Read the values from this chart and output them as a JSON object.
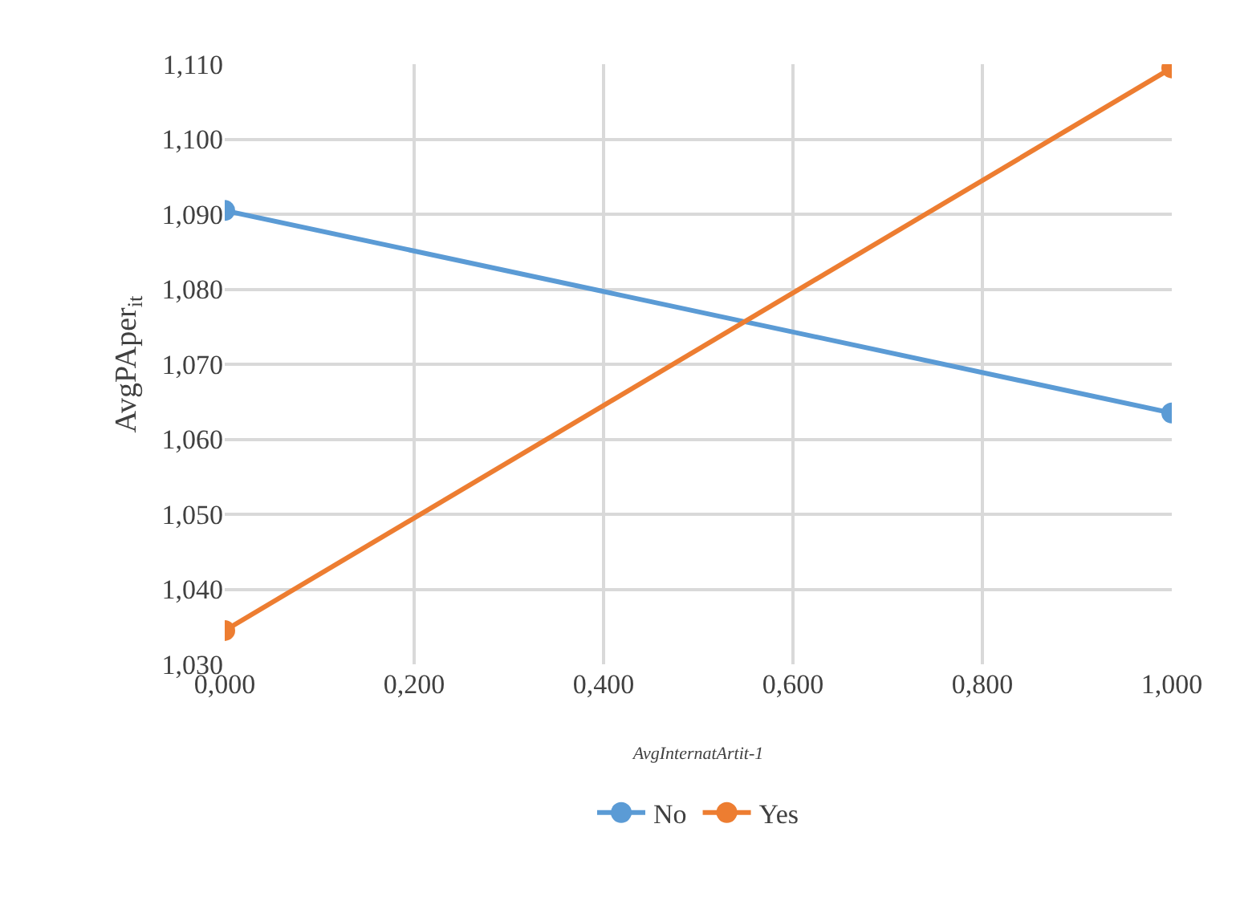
{
  "chart_data": {
    "type": "line",
    "xlabel": "AvgInternatArtit-1",
    "ylabel": "AvgPAper$_{it}$",
    "x": [
      0,
      1
    ],
    "series": [
      {
        "name": "No",
        "color": "#5b9bd5",
        "values": [
          1.0905,
          1.0635
        ]
      },
      {
        "name": "Yes",
        "color": "#ed7d31",
        "values": [
          1.0345,
          1.1095
        ]
      }
    ],
    "xlim": [
      0,
      1
    ],
    "xticks": [
      {
        "value": 0,
        "label": "0,000"
      },
      {
        "value": 0.2,
        "label": "0,200"
      },
      {
        "value": 0.4,
        "label": "0,400"
      },
      {
        "value": 0.6,
        "label": "0,600"
      },
      {
        "value": 0.8,
        "label": "0,800"
      },
      {
        "value": 1,
        "label": "1,000"
      }
    ],
    "ylim": [
      1.03,
      1.11
    ],
    "yticks": [
      {
        "value": 1.03,
        "label": "1,030"
      },
      {
        "value": 1.04,
        "label": "1,040"
      },
      {
        "value": 1.05,
        "label": "1,050"
      },
      {
        "value": 1.06,
        "label": "1,060"
      },
      {
        "value": 1.07,
        "label": "1,070"
      },
      {
        "value": 1.08,
        "label": "1,080"
      },
      {
        "value": 1.09,
        "label": "1,090"
      },
      {
        "value": 1.1,
        "label": "1,100"
      },
      {
        "value": 1.11,
        "label": "1,110"
      }
    ],
    "grid": true,
    "legend": "bottom",
    "marker": "circle",
    "line_style": "solid"
  }
}
